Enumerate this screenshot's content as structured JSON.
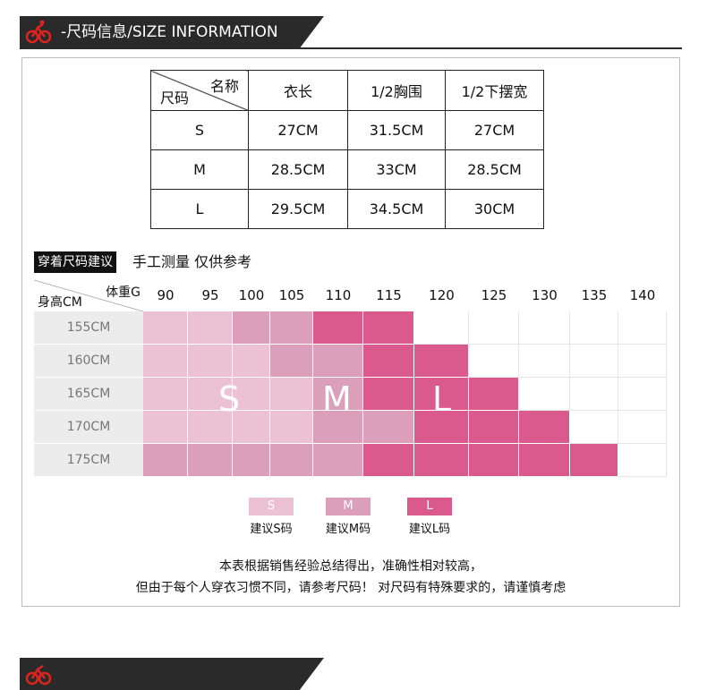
{
  "section_header": {
    "title": "-尺码信息/SIZE INFORMATION"
  },
  "size_table": {
    "corner_top": "名称",
    "corner_bottom": "尺码",
    "columns": [
      "衣长",
      "1/2胸围",
      "1/2下摆宽"
    ],
    "rows": [
      {
        "size": "S",
        "values": [
          "27CM",
          "31.5CM",
          "27CM"
        ]
      },
      {
        "size": "M",
        "values": [
          "28.5CM",
          "33CM",
          "28.5CM"
        ]
      },
      {
        "size": "L",
        "values": [
          "29.5CM",
          "34.5CM",
          "30CM"
        ]
      }
    ]
  },
  "recommend": {
    "tag": "穿着尺码建议",
    "note": "手工测量 仅供参考",
    "corner_top": "体重G",
    "corner_bottom": "身高CM",
    "weights": [
      "90",
      "95",
      "100",
      "105",
      "110",
      "115",
      "120",
      "125",
      "130",
      "135",
      "140"
    ],
    "heights": [
      "155CM",
      "160CM",
      "165CM",
      "170CM",
      "175CM"
    ],
    "matrix": [
      [
        "S",
        "S",
        "M",
        "M",
        "L",
        "L",
        "",
        "",
        "",
        "",
        ""
      ],
      [
        "S",
        "S",
        "S",
        "M",
        "M",
        "L",
        "L",
        "",
        "",
        "",
        ""
      ],
      [
        "S",
        "S",
        "S",
        "S",
        "M",
        "L",
        "L",
        "L",
        "",
        "",
        ""
      ],
      [
        "S",
        "S",
        "S",
        "S",
        "M",
        "M",
        "L",
        "L",
        "L",
        "",
        ""
      ],
      [
        "M",
        "M",
        "M",
        "M",
        "M",
        "L",
        "L",
        "L",
        "L",
        "L",
        ""
      ]
    ],
    "overlay": {
      "S": "S",
      "M": "M",
      "L": "L"
    },
    "colors": {
      "S": "#ecc1d3",
      "M": "#dc9fb9",
      "L": "#db5a8d",
      "empty": "#ffffff"
    }
  },
  "legend": [
    {
      "key": "S",
      "label": "建议S码",
      "color": "#ecc1d3"
    },
    {
      "key": "M",
      "label": "建议M码",
      "color": "#dc9fb9"
    },
    {
      "key": "L",
      "label": "建议L码",
      "color": "#db5a8d"
    }
  ],
  "footnote": {
    "line1": "本表根据销售经验总结得出，准确性相对较高，",
    "line2": "但由于每个人穿衣习惯不同，请参考尺码！ 对尺码有特殊要求的，请谨慎考虑"
  }
}
